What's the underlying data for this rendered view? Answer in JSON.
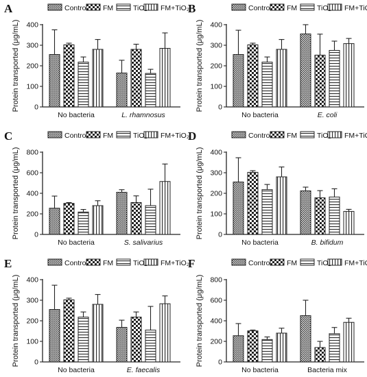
{
  "chart_data": [
    {
      "type": "bar",
      "panel": "A",
      "ylabel": "Protein transported (μg/mL)",
      "ylim": [
        0,
        400
      ],
      "yticks": [
        "0",
        "100",
        "200",
        "300",
        "400"
      ],
      "categories": [
        {
          "text": "No bacteria",
          "italic": false
        },
        {
          "text": "L. rhamnosus",
          "italic": true
        }
      ],
      "series": [
        {
          "name": "Control",
          "values": [
            255,
            165
          ],
          "errors": [
            120,
            62
          ]
        },
        {
          "name": "FM",
          "values": [
            302,
            280
          ],
          "errors": [
            8,
            25
          ]
        },
        {
          "name": "TiO₂",
          "values": [
            218,
            163
          ],
          "errors": [
            25,
            20
          ]
        },
        {
          "name": "FM+TiO₂",
          "values": [
            280,
            285
          ],
          "errors": [
            48,
            75
          ]
        }
      ]
    },
    {
      "type": "bar",
      "panel": "B",
      "ylabel": "Protein transported (μg/mL)",
      "ylim": [
        0,
        400
      ],
      "yticks": [
        "0",
        "100",
        "200",
        "300",
        "400"
      ],
      "categories": [
        {
          "text": "No bacteria",
          "italic": false
        },
        {
          "text": "E. coli",
          "italic": true
        }
      ],
      "series": [
        {
          "name": "Control",
          "values": [
            255,
            355
          ],
          "errors": [
            118,
            75
          ]
        },
        {
          "name": "FM",
          "values": [
            302,
            252
          ],
          "errors": [
            8,
            102
          ]
        },
        {
          "name": "TiO₂",
          "values": [
            218,
            275
          ],
          "errors": [
            25,
            45
          ]
        },
        {
          "name": "FM+TiO₂",
          "values": [
            280,
            308
          ],
          "errors": [
            48,
            25
          ]
        }
      ]
    },
    {
      "type": "bar",
      "panel": "C",
      "ylabel": "Protein transported (μg/mL)",
      "ylim": [
        0,
        800
      ],
      "yticks": [
        "0",
        "200",
        "400",
        "600",
        "800"
      ],
      "categories": [
        {
          "text": "No bacteria",
          "italic": false
        },
        {
          "text": "S. salivarius",
          "italic": true
        }
      ],
      "series": [
        {
          "name": "Control",
          "values": [
            255,
            410
          ],
          "errors": [
            118,
            25
          ]
        },
        {
          "name": "FM",
          "values": [
            302,
            310
          ],
          "errors": [
            8,
            65
          ]
        },
        {
          "name": "TiO₂",
          "values": [
            218,
            280
          ],
          "errors": [
            25,
            160
          ]
        },
        {
          "name": "FM+TiO₂",
          "values": [
            280,
            515
          ],
          "errors": [
            48,
            170
          ]
        }
      ]
    },
    {
      "type": "bar",
      "panel": "D",
      "ylabel": "Protein transported (μg/mL)",
      "ylim": [
        0,
        400
      ],
      "yticks": [
        "0",
        "100",
        "200",
        "300",
        "400"
      ],
      "categories": [
        {
          "text": "No bacteria",
          "italic": false
        },
        {
          "text": "B. bifidum",
          "italic": true
        }
      ],
      "series": [
        {
          "name": "Control",
          "values": [
            255,
            212
          ],
          "errors": [
            118,
            18
          ]
        },
        {
          "name": "FM",
          "values": [
            302,
            178
          ],
          "errors": [
            8,
            35
          ]
        },
        {
          "name": "TiO₂",
          "values": [
            218,
            182
          ],
          "errors": [
            25,
            40
          ]
        },
        {
          "name": "FM+TiO₂",
          "values": [
            280,
            112
          ],
          "errors": [
            48,
            10
          ]
        }
      ]
    },
    {
      "type": "bar",
      "panel": "E",
      "ylabel": "Protein transported (μg/mL)",
      "ylim": [
        0,
        400
      ],
      "yticks": [
        "0",
        "100",
        "200",
        "300",
        "400"
      ],
      "categories": [
        {
          "text": "No bacteria",
          "italic": false
        },
        {
          "text": "E. faecalis",
          "italic": true
        }
      ],
      "series": [
        {
          "name": "Control",
          "values": [
            255,
            168
          ],
          "errors": [
            118,
            35
          ]
        },
        {
          "name": "FM",
          "values": [
            302,
            218
          ],
          "errors": [
            8,
            25
          ]
        },
        {
          "name": "TiO₂",
          "values": [
            218,
            155
          ],
          "errors": [
            25,
            115
          ]
        },
        {
          "name": "FM+TiO₂",
          "values": [
            280,
            283
          ],
          "errors": [
            48,
            38
          ]
        }
      ]
    },
    {
      "type": "bar",
      "panel": "F",
      "ylabel": "Protein transported (μg/mL)",
      "ylim": [
        0,
        800
      ],
      "yticks": [
        "0",
        "200",
        "400",
        "600",
        "800"
      ],
      "categories": [
        {
          "text": "No bacteria",
          "italic": false
        },
        {
          "text": "Bacteria mix",
          "italic": false
        }
      ],
      "series": [
        {
          "name": "Control",
          "values": [
            255,
            450
          ],
          "errors": [
            118,
            150
          ]
        },
        {
          "name": "FM",
          "values": [
            302,
            140
          ],
          "errors": [
            8,
            60
          ]
        },
        {
          "name": "TiO₂",
          "values": [
            218,
            275
          ],
          "errors": [
            25,
            60
          ]
        },
        {
          "name": "FM+TiO₂",
          "values": [
            280,
            385
          ],
          "errors": [
            48,
            40
          ]
        }
      ]
    }
  ],
  "legend": {
    "placement": "top",
    "entries": [
      {
        "label": "Control",
        "pattern": "crosshatch-dark"
      },
      {
        "label": "FM",
        "pattern": "checker"
      },
      {
        "label": "TiO₂",
        "pattern": "horizontal-lines"
      },
      {
        "label": "FM+TiO₂",
        "pattern": "vertical-lines"
      }
    ]
  }
}
